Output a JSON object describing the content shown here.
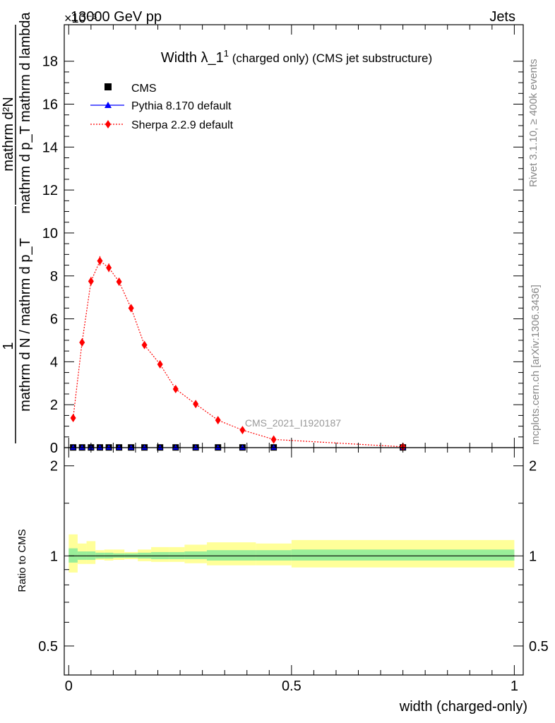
{
  "header": {
    "left": "13000 GeV pp",
    "right": "Jets",
    "exponent": "×10⁻³"
  },
  "side": {
    "rivet": "Rivet 3.1.10, ≥ 400k events",
    "mcplots": "mcplots.cern.ch [arXiv:1306.3436]"
  },
  "watermark": "CMS_2021_I1920187",
  "chart_data": [
    {
      "type": "line",
      "title_main": "Width λ_1",
      "title_sup": "1",
      "title_rest": "(charged only) (CMS jet substructure)",
      "ylabel_numerator": "mathrm d²N",
      "ylabel_denominator": "mathrm d p_T mathrm d lambda",
      "ylabel_prefix_num": "1",
      "ylabel_prefix_den": "mathrm d N / mathrm d p_T",
      "ylim": [
        0,
        0.0197
      ],
      "xlim": [
        -0.01,
        1.02
      ],
      "yticks": [
        0,
        2,
        4,
        6,
        8,
        10,
        12,
        14,
        16,
        18
      ],
      "ytick_labels": [
        "0",
        "2",
        "4",
        "6",
        "8",
        "10",
        "12",
        "14",
        "16",
        "18"
      ],
      "legend_position": "top-left",
      "series": [
        {
          "name": "CMS",
          "color": "#000000",
          "marker": "square",
          "x": [
            0.01,
            0.03,
            0.05,
            0.07,
            0.09,
            0.113,
            0.14,
            0.17,
            0.205,
            0.24,
            0.285,
            0.335,
            0.39,
            0.46,
            0.75
          ],
          "y": [
            1e-05,
            1e-05,
            1e-05,
            1e-05,
            1e-05,
            1e-05,
            1e-05,
            1e-05,
            1e-05,
            1e-05,
            1e-05,
            1e-05,
            1e-05,
            1e-05,
            1e-05
          ]
        },
        {
          "name": "Pythia 8.170 default",
          "color": "#0000ff",
          "marker": "triangle",
          "x": [
            0.01,
            0.03,
            0.05,
            0.07,
            0.09,
            0.113,
            0.14,
            0.17,
            0.205,
            0.24,
            0.285,
            0.335,
            0.39,
            0.46,
            0.75
          ],
          "y": [
            1e-05,
            1e-05,
            1e-05,
            1e-05,
            1e-05,
            1e-05,
            1e-05,
            1e-05,
            1e-05,
            1e-05,
            1e-05,
            1e-05,
            1e-05,
            1e-05,
            1e-05
          ]
        },
        {
          "name": "Sherpa 2.2.9 default",
          "color": "#ff0000",
          "marker": "diamond",
          "x": [
            0.01,
            0.03,
            0.05,
            0.07,
            0.09,
            0.113,
            0.14,
            0.17,
            0.205,
            0.24,
            0.285,
            0.335,
            0.39,
            0.46,
            0.75
          ],
          "y": [
            0.00138,
            0.0049,
            0.00775,
            0.0087,
            0.00838,
            0.00773,
            0.0065,
            0.00478,
            0.00388,
            0.00273,
            0.00203,
            0.00128,
            0.00082,
            0.00038,
            4e-05
          ],
          "yerr": [
            0.0001,
            0.00015,
            0.0002,
            0.00022,
            0.0002,
            0.00018,
            0.00015,
            0.00012,
            0.0001,
            8e-05,
            7e-05,
            5e-05,
            4e-05,
            3e-05,
            1e-05
          ]
        }
      ]
    },
    {
      "type": "area",
      "ylabel": "Ratio to CMS",
      "xlabel": "width (charged-only)",
      "xlim": [
        -0.01,
        1.02
      ],
      "ylim": [
        0.4,
        2.3
      ],
      "xticks": [
        0,
        0.5,
        1
      ],
      "xtick_labels": [
        "0",
        "0.5",
        "1"
      ],
      "yticks": [
        0.5,
        1,
        2
      ],
      "ytick_labels": [
        "0.5",
        "1",
        "2"
      ],
      "bands": {
        "bin_edges": [
          0,
          0.02,
          0.04,
          0.06,
          0.08,
          0.1,
          0.125,
          0.155,
          0.185,
          0.225,
          0.26,
          0.31,
          0.36,
          0.42,
          0.5,
          1.0
        ],
        "green_lo": [
          0.95,
          0.97,
          0.97,
          0.98,
          0.98,
          0.985,
          0.985,
          0.98,
          0.975,
          0.975,
          0.975,
          0.965,
          0.965,
          0.965,
          0.965
        ],
        "green_hi": [
          1.06,
          1.035,
          1.035,
          1.025,
          1.025,
          1.02,
          1.02,
          1.025,
          1.03,
          1.03,
          1.035,
          1.045,
          1.045,
          1.045,
          1.05
        ],
        "yellow_lo": [
          0.88,
          0.94,
          0.94,
          0.97,
          0.965,
          0.97,
          0.975,
          0.96,
          0.955,
          0.955,
          0.945,
          0.93,
          0.93,
          0.93,
          0.915
        ],
        "yellow_hi": [
          1.18,
          1.1,
          1.12,
          1.045,
          1.05,
          1.05,
          1.03,
          1.05,
          1.07,
          1.07,
          1.09,
          1.11,
          1.11,
          1.1,
          1.13
        ]
      },
      "reference_value": 1
    }
  ]
}
